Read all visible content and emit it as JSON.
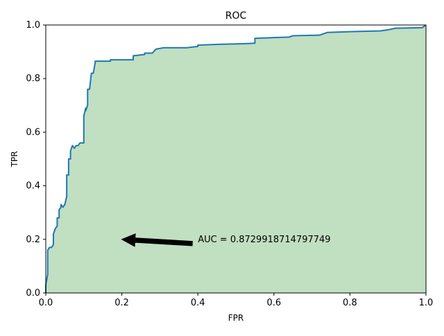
{
  "chart_data": {
    "type": "area",
    "title": "ROC",
    "xlabel": "FPR",
    "ylabel": "TPR",
    "xlim": [
      0,
      1
    ],
    "ylim": [
      0,
      1
    ],
    "x_ticks": [
      "0.0",
      "0.2",
      "0.4",
      "0.6",
      "0.8",
      "1.0"
    ],
    "y_ticks": [
      "0.0",
      "0.2",
      "0.4",
      "0.6",
      "0.8",
      "1.0"
    ],
    "grid": false,
    "line_color": "#1f77b4",
    "fill_color": "#c1dfc1",
    "series": [
      {
        "x": [
          0.0,
          0.0,
          0.005,
          0.005,
          0.01,
          0.015,
          0.02,
          0.02,
          0.025,
          0.03,
          0.03,
          0.035,
          0.035,
          0.04,
          0.04,
          0.045,
          0.05,
          0.055,
          0.055,
          0.06,
          0.06,
          0.065,
          0.065,
          0.07,
          0.075,
          0.08,
          0.085,
          0.09,
          0.1,
          0.1,
          0.105,
          0.105,
          0.11,
          0.11,
          0.115,
          0.12,
          0.125,
          0.13,
          0.13,
          0.17,
          0.17,
          0.23,
          0.23,
          0.26,
          0.26,
          0.28,
          0.29,
          0.31,
          0.37,
          0.4,
          0.4,
          0.46,
          0.52,
          0.55,
          0.55,
          0.6,
          0.64,
          0.65,
          0.72,
          0.74,
          0.8,
          0.88,
          0.9,
          0.92,
          0.99,
          1.0
        ],
        "y": [
          0.0,
          0.03,
          0.07,
          0.16,
          0.17,
          0.17,
          0.18,
          0.22,
          0.24,
          0.25,
          0.28,
          0.28,
          0.31,
          0.32,
          0.33,
          0.32,
          0.33,
          0.36,
          0.44,
          0.44,
          0.5,
          0.5,
          0.53,
          0.55,
          0.54,
          0.55,
          0.55,
          0.56,
          0.56,
          0.66,
          0.69,
          0.68,
          0.7,
          0.76,
          0.76,
          0.82,
          0.82,
          0.86,
          0.865,
          0.865,
          0.87,
          0.87,
          0.885,
          0.89,
          0.895,
          0.895,
          0.91,
          0.915,
          0.915,
          0.92,
          0.925,
          0.928,
          0.93,
          0.932,
          0.95,
          0.953,
          0.955,
          0.96,
          0.962,
          0.972,
          0.975,
          0.978,
          0.982,
          0.988,
          0.99,
          1.0
        ]
      }
    ],
    "annotation": {
      "text": "AUC = 0.8729918714797749",
      "text_at": [
        0.4,
        0.2
      ],
      "arrow_to": [
        0.2,
        0.2
      ]
    }
  }
}
